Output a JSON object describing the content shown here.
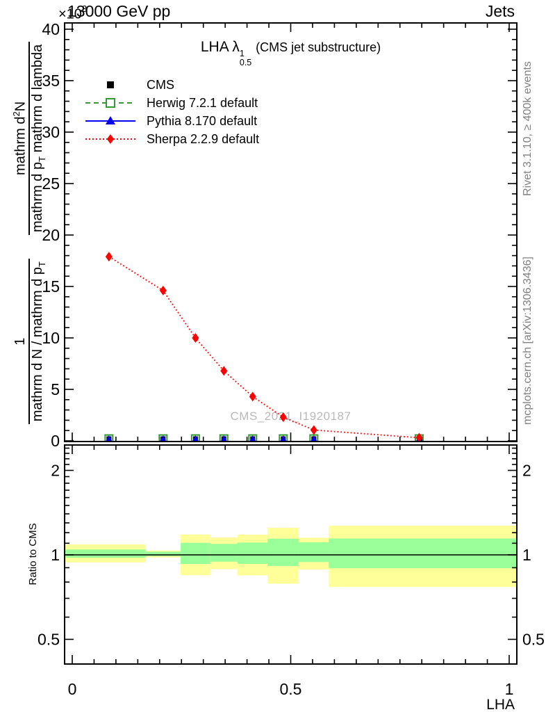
{
  "colors": {
    "cms": "#000000",
    "herwig": "#339933",
    "pythia": "#0000ee",
    "sherpa": "#ff0000",
    "band_yellow": "#ffff99",
    "band_green": "#99ff99",
    "side_text": "#808080",
    "watermark": "#b9b9b9"
  },
  "header": {
    "scale_base": "×10",
    "scale_exp": "3",
    "energy": "13000 GeV pp",
    "right": "Jets"
  },
  "titles": {
    "obs_prefix": "LHA ",
    "lambda": "λ",
    "lambda_sup": "1",
    "lambda_sub": "0.5",
    "obs_suffix": "(CMS jet substructure)"
  },
  "ylabel": {
    "frac1_num": "1",
    "frac1_den_pre": "mathrm d N / mathrm d p",
    "frac1_den_sub": "T",
    "frac2_num_pre": "mathrm d",
    "frac2_num_sup": "2",
    "frac2_num_post": "N",
    "frac2_den_pre": "mathrm d p",
    "frac2_den_sub": "T",
    "frac2_den_post": " mathrm d lambda"
  },
  "side": {
    "rivet": "Rivet 3.1.10, ≥ 400k events",
    "mcplots": "mcplots.cern.ch [arXiv:1306.3436]"
  },
  "watermark": "CMS_2021_I1920187",
  "xaxis_title": "LHA",
  "chart_data": {
    "type": "line",
    "title": "LHA λ^1_0.5 (CMS jet substructure)",
    "subtitle_top_left": "13000 GeV pp",
    "subtitle_top_right": "Jets",
    "xlabel": "LHA",
    "ylabel": "1/(dN/dp_T) d²N/(dp_T dλ) — rendered literally with 'mathrm' text",
    "y_scale_factor": "×10^3",
    "legend_position": "top-left",
    "grid": false,
    "xlim": [
      -0.017,
      1.035
    ],
    "ylim": [
      0,
      40.6
    ],
    "x_ticks": [
      0,
      0.5,
      1
    ],
    "x_tick_labels": [
      "0",
      "0.5",
      "1"
    ],
    "x_minor_step": 0.05,
    "y_max": 40,
    "y_tick_step": 5,
    "y_minor_step": 1,
    "bin_centers": [
      0.084,
      0.208,
      0.282,
      0.347,
      0.413,
      0.483,
      0.553,
      0.794
    ],
    "series": [
      {
        "name": "CMS",
        "marker": "filled-square",
        "line": "none",
        "color": "#000000",
        "values": [
          0.2,
          0.2,
          0.2,
          0.2,
          0.2,
          0.2,
          0.2,
          0.2
        ]
      },
      {
        "name": "Herwig 7.2.1 default",
        "marker": "open-square",
        "line": "dashed",
        "color": "#339933",
        "values": [
          0.2,
          0.2,
          0.2,
          0.2,
          0.2,
          0.2,
          0.2,
          0.2
        ]
      },
      {
        "name": "Pythia 8.170 default",
        "marker": "filled-triangle",
        "line": "solid",
        "color": "#0000ee",
        "values": [
          0.2,
          0.2,
          0.2,
          0.2,
          0.2,
          0.2,
          0.2,
          0.2
        ]
      },
      {
        "name": "Sherpa 2.2.9 default",
        "marker": "filled-diamond",
        "line": "dotted",
        "color": "#ff0000",
        "values": [
          17.9,
          14.6,
          10.0,
          6.8,
          4.3,
          2.3,
          1.05,
          0.3
        ]
      }
    ],
    "ratio": {
      "ylabel": "Ratio to CMS",
      "scale": "log",
      "ylim": [
        0.41,
        2.46
      ],
      "y_ticks": [
        0.5,
        1,
        2
      ],
      "y_tick_labels": [
        "0.5",
        "1",
        "2"
      ],
      "reference_line": 1,
      "bands": [
        {
          "x0": -0.017,
          "x1": 0.168,
          "yellow": [
            0.94,
            1.09
          ],
          "green": [
            0.977,
            1.045
          ]
        },
        {
          "x0": 0.168,
          "x1": 0.248,
          "yellow": [
            0.979,
            1.036
          ],
          "green": [
            0.989,
            1.027
          ]
        },
        {
          "x0": 0.248,
          "x1": 0.316,
          "yellow": [
            0.846,
            1.182
          ],
          "green": [
            0.928,
            1.104
          ]
        },
        {
          "x0": 0.316,
          "x1": 0.378,
          "yellow": [
            0.89,
            1.153
          ],
          "green": [
            0.946,
            1.094
          ]
        },
        {
          "x0": 0.378,
          "x1": 0.447,
          "yellow": [
            0.845,
            1.18
          ],
          "green": [
            0.929,
            1.106
          ]
        },
        {
          "x0": 0.447,
          "x1": 0.518,
          "yellow": [
            0.789,
            1.249
          ],
          "green": [
            0.913,
            1.142
          ]
        },
        {
          "x0": 0.518,
          "x1": 0.587,
          "yellow": [
            0.887,
            1.151
          ],
          "green": [
            0.943,
            1.108
          ]
        },
        {
          "x0": 0.587,
          "x1": 1.04,
          "yellow": [
            0.768,
            1.271
          ],
          "green": [
            0.896,
            1.144
          ]
        }
      ]
    }
  }
}
